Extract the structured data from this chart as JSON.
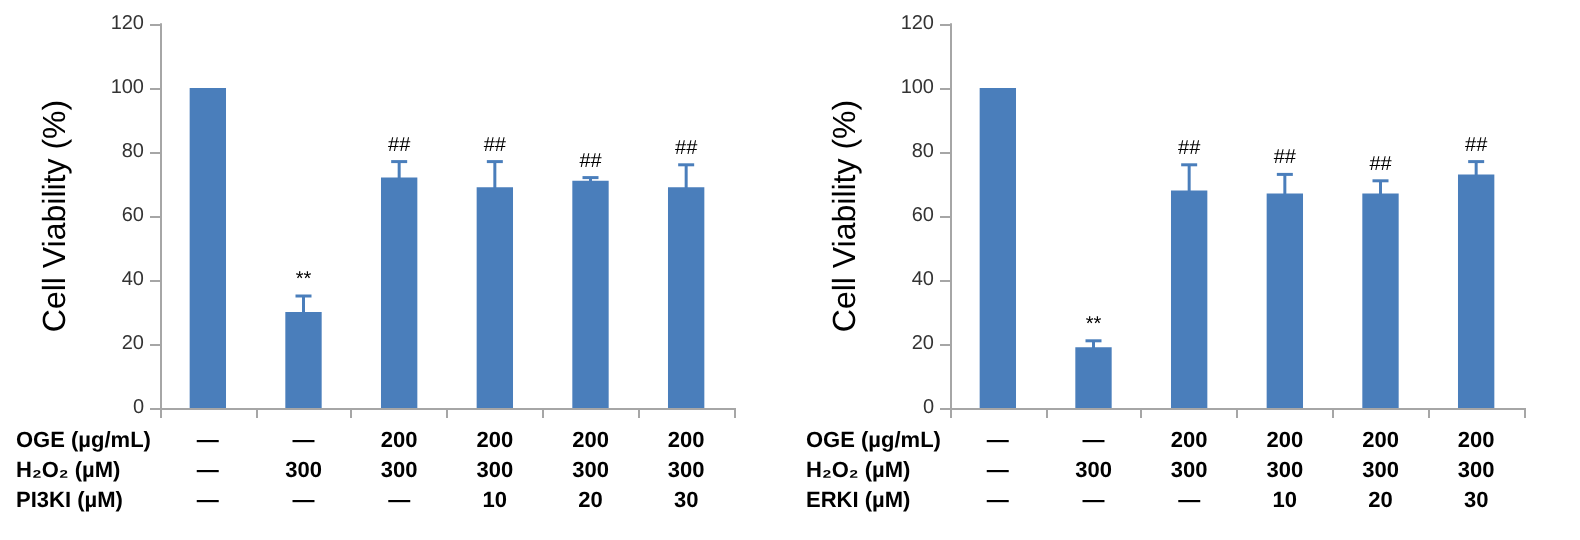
{
  "chart_data": [
    {
      "type": "bar",
      "ylabel": "Cell Viability (%)",
      "categories": [
        "—\n—\n—",
        "—\n300\n—",
        "200\n300\n—",
        "200\n300\n10",
        "200\n300\n20",
        "200\n300\n30"
      ],
      "values": [
        100,
        30,
        72,
        69,
        71,
        69
      ],
      "errors": [
        null,
        5,
        5,
        8,
        1,
        7
      ],
      "value_labels": [
        null,
        "**",
        "##",
        "##",
        "##",
        "##"
      ],
      "color": "#4a7ebb",
      "ylim": [
        0,
        120
      ],
      "yticks": [
        0,
        20,
        40,
        60,
        80,
        100,
        120
      ],
      "grid": false,
      "annotations": [
        "OGE (µg/mL)",
        "H₂O₂ (µM)",
        "PI3KI (µM)"
      ]
    },
    {
      "type": "bar",
      "ylabel": "Cell Viability (%)",
      "categories": [
        "—\n—\n—",
        "—\n300\n—",
        "200\n300\n—",
        "200\n300\n10",
        "200\n300\n20",
        "200\n300\n30"
      ],
      "values": [
        100,
        19,
        68,
        67,
        67,
        73
      ],
      "errors": [
        null,
        2,
        8,
        6,
        4,
        4
      ],
      "value_labels": [
        null,
        "**",
        "##",
        "##",
        "##",
        "##"
      ],
      "color": "#4a7ebb",
      "ylim": [
        0,
        120
      ],
      "yticks": [
        0,
        20,
        40,
        60,
        80,
        100,
        120
      ],
      "grid": false,
      "annotations": [
        "OGE (µg/mL)",
        "H₂O₂ (µM)",
        "ERKI (µM)"
      ]
    }
  ]
}
